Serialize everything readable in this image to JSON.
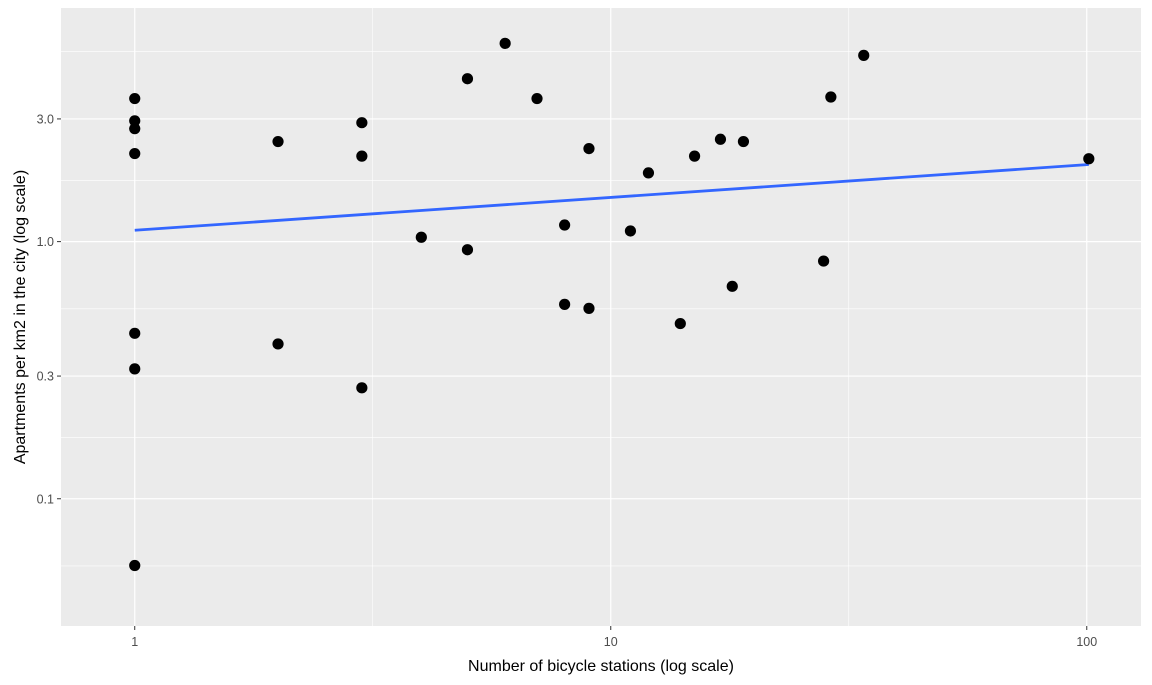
{
  "chart_data": {
    "type": "scatter",
    "xlabel": "Number of bicycle stations (log scale)",
    "ylabel": "Apartments per km2 in the city (log scale)",
    "x_scale": "log10",
    "y_scale": "log10",
    "xlim": [
      0.7,
      130
    ],
    "ylim": [
      0.032,
      8.1
    ],
    "x_ticks": [
      {
        "value": 1,
        "label": "1"
      },
      {
        "value": 10,
        "label": "10"
      },
      {
        "value": 100,
        "label": "100"
      }
    ],
    "y_ticks": [
      {
        "value": 0.1,
        "label": "0.1"
      },
      {
        "value": 0.3,
        "label": "0.3"
      },
      {
        "value": 1.0,
        "label": "1.0"
      },
      {
        "value": 3.0,
        "label": "3.0"
      }
    ],
    "x_minor_gridlines": [
      3.162,
      31.62
    ],
    "y_minor_gridlines": [
      0.0548,
      0.1732,
      0.5477,
      1.732,
      5.477
    ],
    "grid": true,
    "legend": "none",
    "points": [
      {
        "x": 1,
        "y": 3.6
      },
      {
        "x": 1,
        "y": 2.95
      },
      {
        "x": 1,
        "y": 2.75
      },
      {
        "x": 1,
        "y": 2.2
      },
      {
        "x": 1,
        "y": 0.44
      },
      {
        "x": 1,
        "y": 0.32
      },
      {
        "x": 1,
        "y": 0.055
      },
      {
        "x": 2,
        "y": 2.45
      },
      {
        "x": 2,
        "y": 0.4
      },
      {
        "x": 3,
        "y": 2.9
      },
      {
        "x": 3,
        "y": 2.15
      },
      {
        "x": 3,
        "y": 0.27
      },
      {
        "x": 4,
        "y": 1.04
      },
      {
        "x": 5,
        "y": 4.3
      },
      {
        "x": 5,
        "y": 0.93
      },
      {
        "x": 6,
        "y": 5.9
      },
      {
        "x": 7,
        "y": 3.6
      },
      {
        "x": 8,
        "y": 1.16
      },
      {
        "x": 8,
        "y": 0.57
      },
      {
        "x": 9,
        "y": 2.3
      },
      {
        "x": 9,
        "y": 0.55
      },
      {
        "x": 11,
        "y": 1.1
      },
      {
        "x": 12,
        "y": 1.85
      },
      {
        "x": 14,
        "y": 0.48
      },
      {
        "x": 15,
        "y": 2.15
      },
      {
        "x": 17,
        "y": 2.5
      },
      {
        "x": 18,
        "y": 0.67
      },
      {
        "x": 19,
        "y": 2.45
      },
      {
        "x": 28,
        "y": 0.84
      },
      {
        "x": 29,
        "y": 3.65
      },
      {
        "x": 34,
        "y": 5.3
      },
      {
        "x": 101,
        "y": 2.1
      }
    ],
    "trendline": {
      "x": [
        1,
        101
      ],
      "y": [
        1.107,
        1.995
      ]
    },
    "colors": {
      "panel_background": "#ebebeb",
      "gridline": "#ffffff",
      "point": "#000000",
      "trendline": "#3366ff",
      "tick_text": "#4d4d4d",
      "tick_mark": "#333333",
      "axis_title": "#000000"
    }
  }
}
